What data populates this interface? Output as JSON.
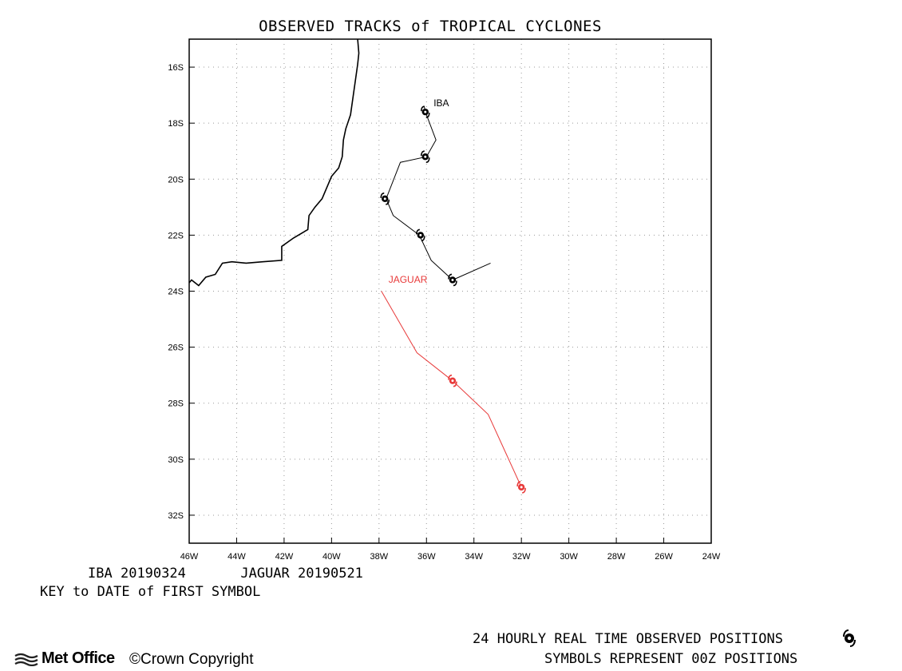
{
  "title": "OBSERVED TRACKS of TROPICAL CYCLONES",
  "map": {
    "lon_range": [
      -46,
      -24
    ],
    "lat_range": [
      -15,
      -33
    ],
    "y_ticks": [
      {
        "lat": -16,
        "label": "16S"
      },
      {
        "lat": -18,
        "label": "18S"
      },
      {
        "lat": -20,
        "label": "20S"
      },
      {
        "lat": -22,
        "label": "22S"
      },
      {
        "lat": -24,
        "label": "24S"
      },
      {
        "lat": -26,
        "label": "26S"
      },
      {
        "lat": -28,
        "label": "28S"
      },
      {
        "lat": -30,
        "label": "30S"
      },
      {
        "lat": -32,
        "label": "32S"
      }
    ],
    "x_ticks": [
      {
        "lon": -46,
        "label": "46W"
      },
      {
        "lon": -44,
        "label": "44W"
      },
      {
        "lon": -42,
        "label": "42W"
      },
      {
        "lon": -40,
        "label": "40W"
      },
      {
        "lon": -38,
        "label": "38W"
      },
      {
        "lon": -36,
        "label": "36W"
      },
      {
        "lon": -34,
        "label": "34W"
      },
      {
        "lon": -32,
        "label": "32W"
      },
      {
        "lon": -30,
        "label": "30W"
      },
      {
        "lon": -28,
        "label": "28W"
      },
      {
        "lon": -26,
        "label": "26W"
      },
      {
        "lon": -24,
        "label": "24W"
      }
    ],
    "coastline": [
      [
        -38.9,
        -15.0
      ],
      [
        -38.85,
        -15.5
      ],
      [
        -38.9,
        -15.9
      ],
      [
        -39.0,
        -16.5
      ],
      [
        -39.1,
        -17.1
      ],
      [
        -39.2,
        -17.7
      ],
      [
        -39.4,
        -18.2
      ],
      [
        -39.5,
        -18.6
      ],
      [
        -39.55,
        -19.2
      ],
      [
        -39.7,
        -19.6
      ],
      [
        -40.0,
        -19.9
      ],
      [
        -40.2,
        -20.3
      ],
      [
        -40.4,
        -20.7
      ],
      [
        -40.7,
        -21.0
      ],
      [
        -40.95,
        -21.3
      ],
      [
        -41.0,
        -21.8
      ],
      [
        -41.6,
        -22.1
      ],
      [
        -42.1,
        -22.4
      ],
      [
        -42.1,
        -22.9
      ],
      [
        -42.9,
        -22.95
      ],
      [
        -43.6,
        -23.0
      ],
      [
        -44.2,
        -22.95
      ],
      [
        -44.6,
        -23.0
      ],
      [
        -44.9,
        -23.4
      ],
      [
        -45.3,
        -23.5
      ],
      [
        -45.6,
        -23.8
      ],
      [
        -45.9,
        -23.6
      ],
      [
        -46.0,
        -23.7
      ]
    ],
    "storms": [
      {
        "name": "IBA",
        "label": "IBA",
        "start_date": "20190324",
        "color": "#000000",
        "label_at": [
          -35.7,
          -17.4
        ],
        "track": [
          [
            -36.1,
            -17.4
          ],
          [
            -36.0,
            -17.7
          ],
          [
            -35.6,
            -18.6
          ],
          [
            -36.0,
            -19.2
          ],
          [
            -37.1,
            -19.4
          ],
          [
            -37.7,
            -20.7
          ],
          [
            -37.4,
            -21.3
          ],
          [
            -36.3,
            -22.0
          ],
          [
            -35.8,
            -22.9
          ],
          [
            -34.9,
            -23.6
          ],
          [
            -33.3,
            -23.0
          ]
        ],
        "symbols": [
          [
            -36.05,
            -17.6
          ],
          [
            -36.05,
            -19.2
          ],
          [
            -37.75,
            -20.7
          ],
          [
            -36.25,
            -22.0
          ],
          [
            -34.9,
            -23.6
          ]
        ]
      },
      {
        "name": "JAGUAR",
        "label": "JAGUAR",
        "start_date": "20190521",
        "color": "#e83a3a",
        "label_at": [
          -37.6,
          -23.7
        ],
        "track": [
          [
            -37.9,
            -24.0
          ],
          [
            -36.4,
            -26.2
          ],
          [
            -34.9,
            -27.2
          ],
          [
            -33.4,
            -28.4
          ],
          [
            -32.0,
            -31.0
          ]
        ],
        "symbols": [
          [
            -34.9,
            -27.2
          ],
          [
            -32.0,
            -31.0
          ]
        ]
      }
    ]
  },
  "key": {
    "entries": [
      {
        "name": "IBA",
        "date": "20190324"
      },
      {
        "name": "JAGUAR",
        "date": "20190521"
      }
    ],
    "caption": "KEY to DATE of FIRST SYMBOL"
  },
  "footer": {
    "line1": "24 HOURLY REAL TIME OBSERVED POSITIONS",
    "line2": "SYMBOLS REPRESENT 00Z POSITIONS",
    "logo_text": "Met Office",
    "copyright": "©Crown Copyright",
    "symbol_icon": "tropical-cyclone-symbol"
  }
}
